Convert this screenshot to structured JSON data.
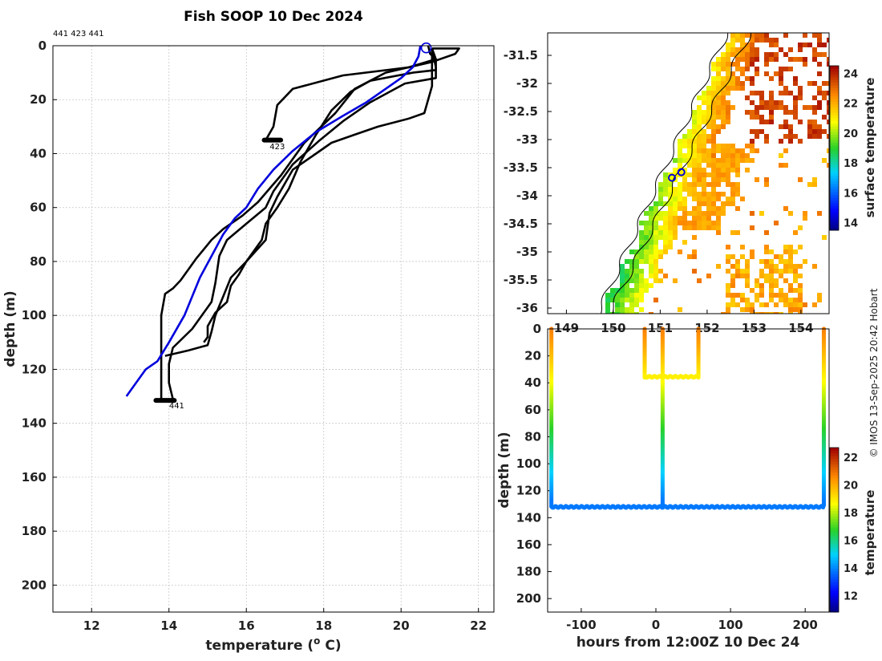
{
  "chart_data": [
    {
      "type": "line",
      "title": "Fish SOOP 10 Dec 2024",
      "profile_ids_label": "441 423 441",
      "xlabel": "temperature (",
      "xlabel_sup": "o",
      "xlabel_end": " C)",
      "ylabel": "depth (m)",
      "xlim": [
        11,
        22.4
      ],
      "ylim": [
        210,
        0
      ],
      "xticks": [
        12,
        14,
        16,
        18,
        20,
        22
      ],
      "yticks": [
        0,
        20,
        40,
        60,
        80,
        100,
        120,
        140,
        160,
        180,
        200
      ],
      "grid": true,
      "annotations": [
        {
          "text": "423",
          "x": 16.8,
          "depth": 37.5
        },
        {
          "text": "441",
          "x": 14.2,
          "depth": 133.5
        }
      ],
      "surface_marker": {
        "x": 20.65,
        "depth": 0.5,
        "color": "#0000dd"
      },
      "series": [
        {
          "color": "#000000",
          "points": [
            [
              20.7,
              0
            ],
            [
              20.75,
              3
            ],
            [
              20.9,
              5
            ],
            [
              20.2,
              8
            ],
            [
              18.5,
              11
            ],
            [
              17.2,
              16
            ],
            [
              16.8,
              22
            ],
            [
              16.7,
              30
            ],
            [
              16.5,
              35
            ]
          ]
        },
        {
          "color": "#000000",
          "points": [
            [
              20.8,
              1
            ],
            [
              21.5,
              1
            ],
            [
              21.4,
              3
            ],
            [
              20.8,
              6
            ],
            [
              19.6,
              10
            ],
            [
              18.8,
              16
            ],
            [
              18.3,
              25
            ],
            [
              17.5,
              36
            ],
            [
              16.9,
              48
            ],
            [
              16.3,
              58
            ],
            [
              15.9,
              63
            ],
            [
              15.4,
              68
            ],
            [
              15.1,
              72
            ],
            [
              14.7,
              79
            ],
            [
              14.3,
              87
            ],
            [
              14.1,
              90
            ],
            [
              13.9,
              92
            ],
            [
              13.8,
              100
            ],
            [
              13.8,
              110
            ],
            [
              13.8,
              120
            ],
            [
              13.8,
              131
            ]
          ]
        },
        {
          "color": "#000000",
          "points": [
            [
              20.8,
              1
            ],
            [
              20.9,
              8
            ],
            [
              20.9,
              12
            ],
            [
              20.1,
              14
            ],
            [
              19.2,
              21
            ],
            [
              18.5,
              28
            ],
            [
              17.9,
              35
            ],
            [
              17.2,
              44
            ],
            [
              16.7,
              54
            ],
            [
              16.5,
              60
            ],
            [
              16.0,
              66
            ],
            [
              15.5,
              72
            ],
            [
              15.3,
              78
            ],
            [
              15.2,
              88
            ],
            [
              15.1,
              95
            ],
            [
              14.9,
              99
            ],
            [
              14.6,
              105
            ],
            [
              14.1,
              112
            ],
            [
              14.0,
              118
            ],
            [
              14.0,
              125
            ],
            [
              14.1,
              131
            ]
          ]
        },
        {
          "color": "#000000",
          "points": [
            [
              20.8,
              1
            ],
            [
              20.9,
              5
            ],
            [
              20.9,
              9
            ],
            [
              20.3,
              10
            ],
            [
              19.2,
              13
            ],
            [
              18.7,
              17
            ],
            [
              18.2,
              24
            ],
            [
              17.8,
              33
            ],
            [
              17.4,
              43
            ],
            [
              17.1,
              53
            ],
            [
              16.8,
              60
            ],
            [
              16.5,
              66
            ],
            [
              16.4,
              72
            ],
            [
              16.0,
              80
            ],
            [
              15.6,
              86
            ],
            [
              15.4,
              93
            ],
            [
              15.2,
              100
            ],
            [
              15.1,
              106
            ],
            [
              15.0,
              111
            ],
            [
              14.5,
              113
            ],
            [
              13.9,
              115
            ]
          ]
        },
        {
          "color": "#000000",
          "points": [
            [
              20.8,
              1
            ],
            [
              20.8,
              10
            ],
            [
              20.8,
              15
            ],
            [
              20.6,
              25
            ],
            [
              20.2,
              27
            ],
            [
              19.4,
              30
            ],
            [
              18.8,
              33
            ],
            [
              18.2,
              36
            ],
            [
              17.8,
              40
            ],
            [
              17.2,
              46
            ],
            [
              16.8,
              56
            ],
            [
              16.6,
              62
            ],
            [
              16.5,
              72
            ],
            [
              16.0,
              80
            ],
            [
              15.8,
              85
            ],
            [
              15.6,
              89
            ],
            [
              15.5,
              95
            ],
            [
              15.2,
              99
            ],
            [
              15.0,
              104
            ],
            [
              15.0,
              108
            ],
            [
              14.9,
              110
            ]
          ]
        },
        {
          "color": "#0000dd",
          "points": [
            [
              20.5,
              0
            ],
            [
              20.45,
              4
            ],
            [
              20.3,
              8
            ],
            [
              20.0,
              12
            ],
            [
              19.6,
              16
            ],
            [
              19.1,
              21
            ],
            [
              18.5,
              26
            ],
            [
              17.8,
              32
            ],
            [
              17.2,
              39
            ],
            [
              16.7,
              46
            ],
            [
              16.3,
              53
            ],
            [
              16.0,
              60
            ],
            [
              15.7,
              64
            ],
            [
              15.4,
              70
            ],
            [
              15.1,
              78
            ],
            [
              14.8,
              86
            ],
            [
              14.4,
              100
            ],
            [
              14.0,
              110
            ],
            [
              13.7,
              117
            ],
            [
              13.4,
              120
            ],
            [
              13.2,
              124
            ],
            [
              13.0,
              128
            ],
            [
              12.9,
              130
            ]
          ]
        }
      ]
    },
    {
      "type": "heatmap",
      "yticks": [
        -31.5,
        -32,
        -32.5,
        -33,
        -33.5,
        -34,
        -34.5,
        -35,
        -35.5,
        -36
      ],
      "xticks": [
        149,
        150,
        151,
        152,
        153,
        154
      ],
      "xlim": [
        148.6,
        154.6
      ],
      "ylim": [
        -36.1,
        -31.1
      ],
      "colorbar_label": "surface temperature",
      "colorbar_ticks": [
        14,
        16,
        18,
        20,
        22,
        24
      ],
      "colorbar_range": [
        13.5,
        24.5
      ],
      "markers": [
        {
          "lon": 151.25,
          "lat": -33.68
        },
        {
          "lon": 151.45,
          "lat": -33.58
        }
      ]
    },
    {
      "type": "scatter",
      "xlabel": "hours from 12:00Z 10 Dec 24",
      "ylabel": "depth (m)",
      "xlim": [
        -145,
        232
      ],
      "ylim": [
        210,
        0
      ],
      "xticks": [
        -100,
        0,
        100,
        200
      ],
      "yticks": [
        0,
        20,
        40,
        60,
        80,
        100,
        120,
        140,
        160,
        180,
        200
      ],
      "colorbar_label": "temperature",
      "colorbar_ticks": [
        12,
        14,
        16,
        18,
        20,
        22
      ],
      "colorbar_range": [
        10.8,
        22.7
      ],
      "casts": [
        {
          "x": -140,
          "top": 0,
          "bottom": 132
        },
        {
          "x": -15,
          "top": 0,
          "bottom": 36
        },
        {
          "x": 9,
          "top": 0,
          "bottom": 131
        },
        {
          "x": 57,
          "top": 0,
          "bottom": 36
        },
        {
          "x": 225,
          "top": 0,
          "bottom": 132
        }
      ],
      "bottom_segments": [
        {
          "x0": -140,
          "x1": 225,
          "depth": 132
        },
        {
          "x0": -15,
          "x1": 57,
          "depth": 35.5
        }
      ]
    }
  ],
  "credit": "© IMOS 13-Sep-2025 20:42 Hobart"
}
